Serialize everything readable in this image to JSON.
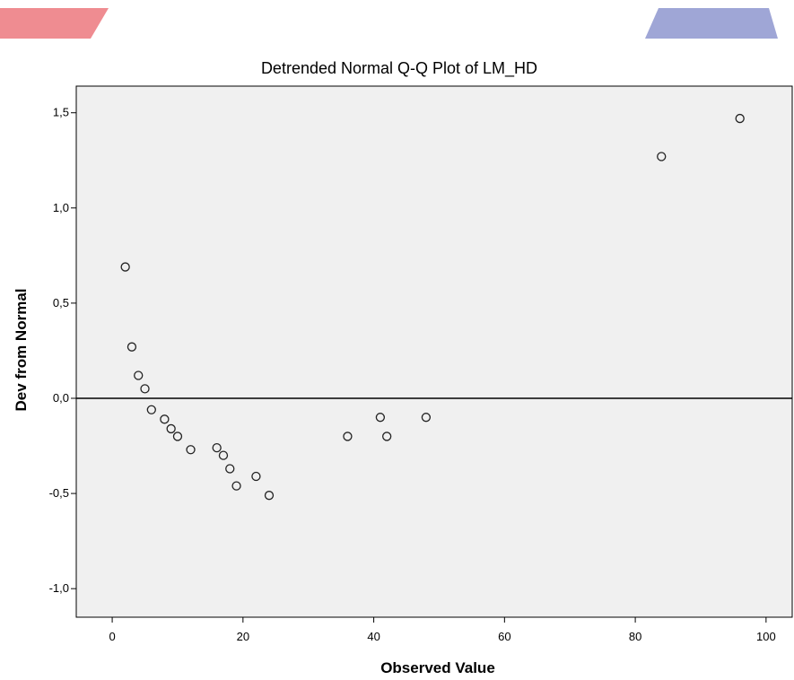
{
  "decoration": {
    "left_tab_color": "#ef8c91",
    "right_tab_color": "#9fa6d6"
  },
  "chart_data": {
    "type": "scatter",
    "title": "Detrended Normal Q-Q Plot of LM_HD",
    "xlabel": "Observed Value",
    "ylabel": "Dev from Normal",
    "xlim": [
      -5.5,
      104
    ],
    "ylim": [
      -1.15,
      1.64
    ],
    "x_ticks": [
      0,
      20,
      40,
      60,
      80,
      100
    ],
    "x_tick_labels": [
      "0",
      "20",
      "40",
      "60",
      "80",
      "100"
    ],
    "y_ticks": [
      -1.0,
      -0.5,
      0.0,
      0.5,
      1.0,
      1.5
    ],
    "y_tick_labels": [
      "-1,0",
      "-0,5",
      "0,0",
      "0,5",
      "1,0",
      "1,5"
    ],
    "reference_line_y": 0,
    "plot_background": "#f0f0f0",
    "marker": "hollow-circle",
    "grid": false,
    "points": [
      {
        "x": 2,
        "y": 0.69
      },
      {
        "x": 3,
        "y": 0.27
      },
      {
        "x": 4,
        "y": 0.12
      },
      {
        "x": 5,
        "y": 0.05
      },
      {
        "x": 6,
        "y": -0.06
      },
      {
        "x": 8,
        "y": -0.11
      },
      {
        "x": 9,
        "y": -0.16
      },
      {
        "x": 10,
        "y": -0.2
      },
      {
        "x": 12,
        "y": -0.27
      },
      {
        "x": 16,
        "y": -0.26
      },
      {
        "x": 17,
        "y": -0.3
      },
      {
        "x": 18,
        "y": -0.37
      },
      {
        "x": 19,
        "y": -0.46
      },
      {
        "x": 22,
        "y": -0.41
      },
      {
        "x": 24,
        "y": -0.51
      },
      {
        "x": 36,
        "y": -0.2
      },
      {
        "x": 41,
        "y": -0.1
      },
      {
        "x": 42,
        "y": -0.2
      },
      {
        "x": 48,
        "y": -0.1
      },
      {
        "x": 84,
        "y": 1.27
      },
      {
        "x": 96,
        "y": 1.47
      }
    ]
  }
}
